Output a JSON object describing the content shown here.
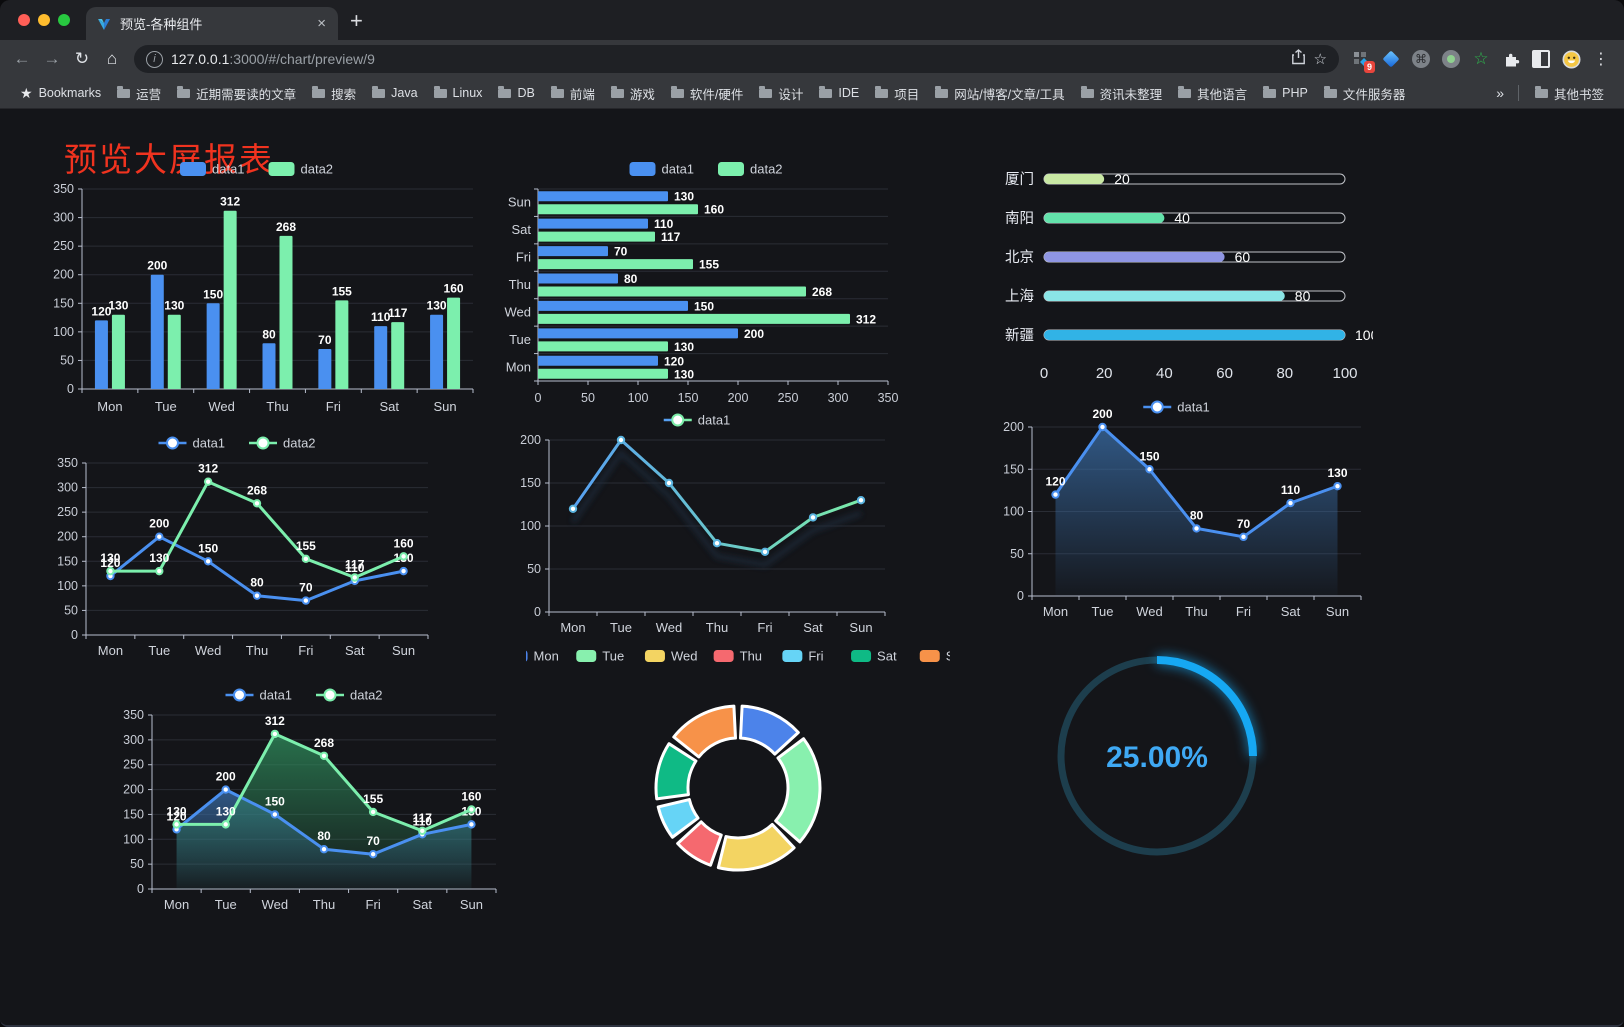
{
  "browser": {
    "tab": {
      "title": "预览-各种组件",
      "close_label": "×",
      "new_tab_label": "+"
    },
    "url": {
      "host": "127.0.0.1",
      "rest": ":3000/#/chart/preview/9"
    },
    "extension_badge": "9",
    "bookmarks": {
      "label": "Bookmarks",
      "items": [
        "运营",
        "近期需要读的文章",
        "搜索",
        "Java",
        "Linux",
        "DB",
        "前端",
        "游戏",
        "软件/硬件",
        "设计",
        "IDE",
        "项目",
        "网站/博客/文章/工具",
        "资讯未整理",
        "其他语言",
        "PHP",
        "文件服务器"
      ],
      "overflow": "»",
      "other": "其他书签"
    }
  },
  "page": {
    "title": "预览大屏报表",
    "title_color": "#f0331f",
    "background": "#141519"
  },
  "chart_data": [
    {
      "type": "bar",
      "title": "grouped vertical bar",
      "categories": [
        "Mon",
        "Tue",
        "Wed",
        "Thu",
        "Fri",
        "Sat",
        "Sun"
      ],
      "series": [
        {
          "name": "data1",
          "color": "#4a90f0",
          "values": [
            120,
            200,
            150,
            80,
            70,
            110,
            130
          ]
        },
        {
          "name": "data2",
          "color": "#7cefad",
          "values": [
            130,
            130,
            312,
            268,
            155,
            117,
            160
          ]
        }
      ],
      "ylim": [
        0,
        350
      ],
      "ytick": 50,
      "labels": true,
      "legend": "rect"
    },
    {
      "type": "hbar",
      "title": "grouped horizontal bar",
      "categories": [
        "Mon",
        "Tue",
        "Wed",
        "Thu",
        "Fri",
        "Sat",
        "Sun"
      ],
      "display_order_top_to_bottom": [
        "Sun",
        "Sat",
        "Fri",
        "Thu",
        "Wed",
        "Tue",
        "Mon"
      ],
      "series": [
        {
          "name": "data1",
          "color": "#4a90f0",
          "values": [
            120,
            200,
            150,
            80,
            70,
            110,
            130
          ]
        },
        {
          "name": "data2",
          "color": "#7cefad",
          "values": [
            130,
            130,
            312,
            268,
            155,
            117,
            160
          ]
        }
      ],
      "xlim": [
        0,
        350
      ],
      "xtick": 50,
      "labels": true,
      "legend": "rect"
    },
    {
      "type": "progress",
      "title": "city progress bars",
      "max": 100,
      "ticks": [
        0,
        20,
        40,
        60,
        80,
        100
      ],
      "items": [
        {
          "label": "厦门",
          "value": 20,
          "color": "#c9e8a4"
        },
        {
          "label": "南阳",
          "value": 40,
          "color": "#63e2ab"
        },
        {
          "label": "北京",
          "value": 60,
          "color": "#8f96e3"
        },
        {
          "label": "上海",
          "value": 80,
          "color": "#8ae5e6"
        },
        {
          "label": "新疆",
          "value": 100,
          "color": "#31b3e6"
        }
      ]
    },
    {
      "type": "line",
      "title": "two series line",
      "categories": [
        "Mon",
        "Tue",
        "Wed",
        "Thu",
        "Fri",
        "Sat",
        "Sun"
      ],
      "series": [
        {
          "name": "data1",
          "color": "#4a90f0",
          "values": [
            120,
            200,
            150,
            80,
            70,
            110,
            130
          ]
        },
        {
          "name": "data2",
          "color": "#7cefad",
          "values": [
            130,
            130,
            312,
            268,
            155,
            117,
            160
          ]
        }
      ],
      "ylim": [
        0,
        350
      ],
      "ytick": 50,
      "labels": true,
      "legend": "line"
    },
    {
      "type": "line",
      "title": "gradient line",
      "categories": [
        "Mon",
        "Tue",
        "Wed",
        "Thu",
        "Fri",
        "Sat",
        "Sun"
      ],
      "series": [
        {
          "name": "data1",
          "gradient": [
            "#57a0f2",
            "#7beca8"
          ],
          "values": [
            120,
            200,
            150,
            80,
            70,
            110,
            130
          ]
        }
      ],
      "ylim": [
        0,
        200
      ],
      "ytick": 50,
      "labels": false,
      "legend": "line",
      "shadow": true
    },
    {
      "type": "line",
      "title": "area line",
      "categories": [
        "Mon",
        "Tue",
        "Wed",
        "Thu",
        "Fri",
        "Sat",
        "Sun"
      ],
      "series": [
        {
          "name": "data1",
          "color": "#4a90f0",
          "area": "#3a6ea8",
          "values": [
            120,
            200,
            150,
            80,
            70,
            110,
            130
          ]
        }
      ],
      "ylim": [
        0,
        200
      ],
      "ytick": 50,
      "labels": true,
      "legend": "line"
    },
    {
      "type": "line",
      "title": "two series area line",
      "categories": [
        "Mon",
        "Tue",
        "Wed",
        "Thu",
        "Fri",
        "Sat",
        "Sun"
      ],
      "series": [
        {
          "name": "data1",
          "color": "#4a90f0",
          "area": "#3a6ea8",
          "values": [
            120,
            200,
            150,
            80,
            70,
            110,
            130
          ]
        },
        {
          "name": "data2",
          "color": "#7cefad",
          "area": "#2f8f5d",
          "values": [
            130,
            130,
            312,
            268,
            155,
            117,
            160
          ]
        }
      ],
      "ylim": [
        0,
        350
      ],
      "ytick": 50,
      "labels": true,
      "legend": "line"
    },
    {
      "type": "pie",
      "title": "weekday donut",
      "legend": "rect",
      "items": [
        {
          "label": "Mon",
          "value": 120,
          "color": "#4c83ea"
        },
        {
          "label": "Tue",
          "value": 200,
          "color": "#88f0ae"
        },
        {
          "label": "Wed",
          "value": 150,
          "color": "#f3d462"
        },
        {
          "label": "Thu",
          "value": 80,
          "color": "#f5696f"
        },
        {
          "label": "Fri",
          "value": 70,
          "color": "#66d4f6"
        },
        {
          "label": "Sat",
          "value": 110,
          "color": "#0fba85"
        },
        {
          "label": "Sun",
          "value": 130,
          "color": "#f79249"
        }
      ]
    },
    {
      "type": "gauge",
      "title": "progress ring",
      "value_label": "25.00%",
      "percent": 25,
      "color": "#16a8f3",
      "track": "#1d3e4d",
      "text_color": "#3fa9f4"
    }
  ]
}
